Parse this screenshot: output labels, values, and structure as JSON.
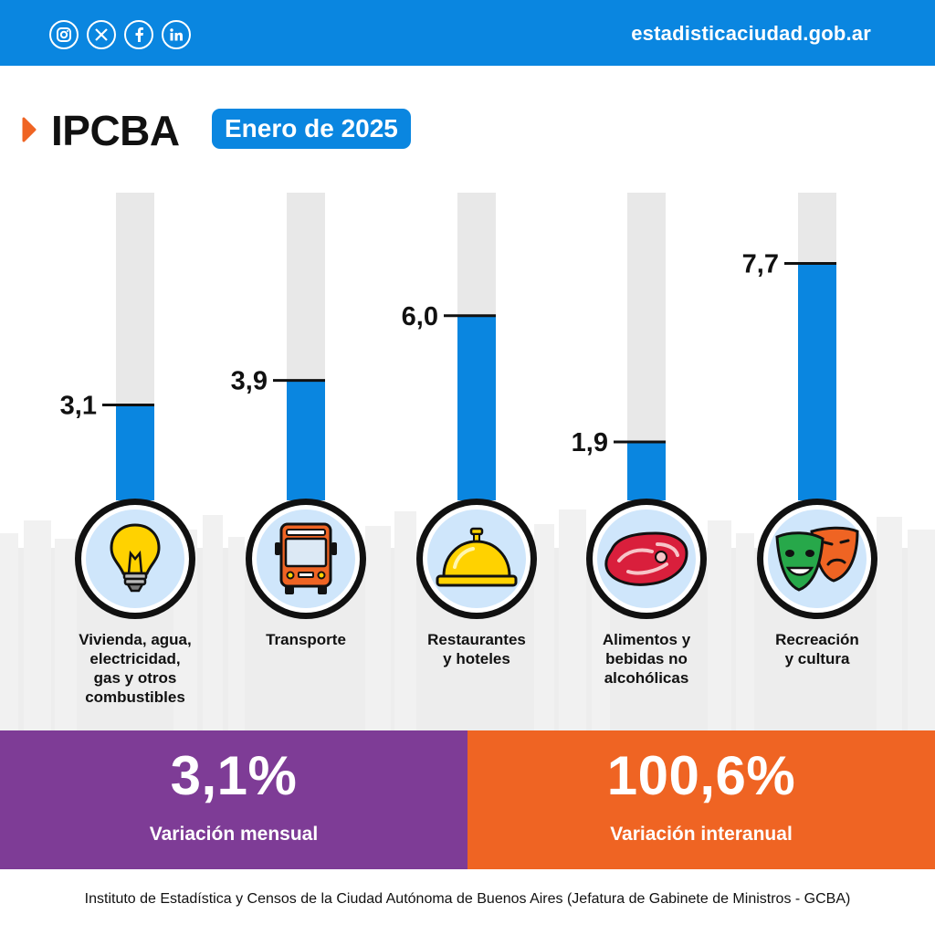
{
  "header": {
    "social_icons": [
      "instagram-icon",
      "x-icon",
      "facebook-icon",
      "linkedin-icon"
    ],
    "url": "estadisticaciudad.gob.ar"
  },
  "title": "IPCBA",
  "date_badge": "Enero de 2025",
  "chart_data": {
    "type": "bar",
    "title": "IPCBA",
    "subtitle": "Enero de 2025",
    "categories": [
      "Vivienda, agua, electricidad, gas y otros combustibles",
      "Transporte",
      "Restaurantes y hoteles",
      "Alimentos y bebidas no alcohólicas",
      "Recreación y cultura"
    ],
    "values": [
      3.1,
      3.9,
      6.0,
      1.9,
      7.7
    ],
    "value_labels": [
      "3,1",
      "3,9",
      "6,0",
      "1,9",
      "7,7"
    ],
    "ylim": [
      0,
      10
    ],
    "grid": false
  },
  "categories": [
    {
      "label": "Vivienda, agua,\nelectricidad,\ngas y otros\ncombustibles",
      "icon": "lightbulb-icon"
    },
    {
      "label": "Transporte",
      "icon": "bus-icon"
    },
    {
      "label": "Restaurantes\ny hoteles",
      "icon": "service-bell-icon"
    },
    {
      "label": "Alimentos y\nbebidas no\nalcohólicas",
      "icon": "meat-icon"
    },
    {
      "label": "Recreación\ny cultura",
      "icon": "theater-masks-icon"
    }
  ],
  "summary": {
    "monthly": {
      "value": "3,1%",
      "caption": "Variación mensual"
    },
    "yearly": {
      "value": "100,6%",
      "caption": "Variación interanual"
    }
  },
  "colors": {
    "primary_blue": "#0a86e0",
    "track_gray": "#e8e8e8",
    "purple": "#7e3c96",
    "orange": "#ef6423"
  },
  "footer": "Instituto de Estadística y Censos de la Ciudad Autónoma de Buenos Aires (Jefatura de Gabinete de Ministros - GCBA)"
}
